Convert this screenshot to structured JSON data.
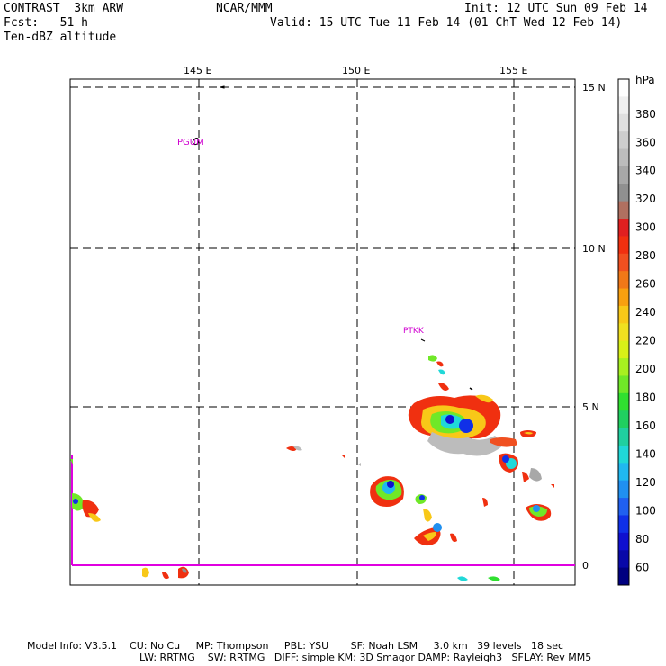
{
  "header": {
    "model_name": "CONTRAST  3km ARW",
    "forecast": "Fcst:   51 h",
    "field": "Ten-dBZ altitude",
    "center": "NCAR/MMM",
    "init": "Init: 12 UTC Sun 09 Feb 14",
    "valid": "Valid: 15 UTC Tue 11 Feb 14 (01 ChT Wed 12 Feb 14)"
  },
  "axes": {
    "lon_labels": [
      "145 E",
      "150 E",
      "155 E"
    ],
    "lat_labels": [
      "15 N",
      "10 N",
      "5 N",
      "0"
    ]
  },
  "stations": [
    {
      "id": "PGUM"
    },
    {
      "id": "PTKK"
    }
  ],
  "colorbar": {
    "unit": "hPa",
    "tick_labels": [
      "380",
      "360",
      "340",
      "320",
      "300",
      "280",
      "260",
      "240",
      "220",
      "200",
      "180",
      "160",
      "140",
      "120",
      "100",
      "80",
      "60"
    ],
    "colors": [
      "#ffffff",
      "#f0f0f0",
      "#e0e0e0",
      "#cdcdcd",
      "#bcbcbc",
      "#a8a8a8",
      "#909090",
      "#b07060",
      "#e02020",
      "#f03010",
      "#f05020",
      "#f07818",
      "#f8a010",
      "#f8c818",
      "#f0e020",
      "#d8f018",
      "#a8f020",
      "#70e828",
      "#30e030",
      "#20d060",
      "#20d0a0",
      "#20d8d8",
      "#20b8f0",
      "#2090f0",
      "#2060f0",
      "#1030e8",
      "#1010d0",
      "#0808a8",
      "#000080"
    ]
  },
  "footer": {
    "line1": "Model Info: V3.5.1    CU: No Cu     MP: Thompson     PBL: YSU       SF: Noah LSM     3.0 km   39 levels   18 sec",
    "line2": "LW: RRTMG    SW: RRTMG   DIFF: simple KM: 3D Smagor DAMP: Rayleigh3   SFLAY: Rev MM5"
  }
}
